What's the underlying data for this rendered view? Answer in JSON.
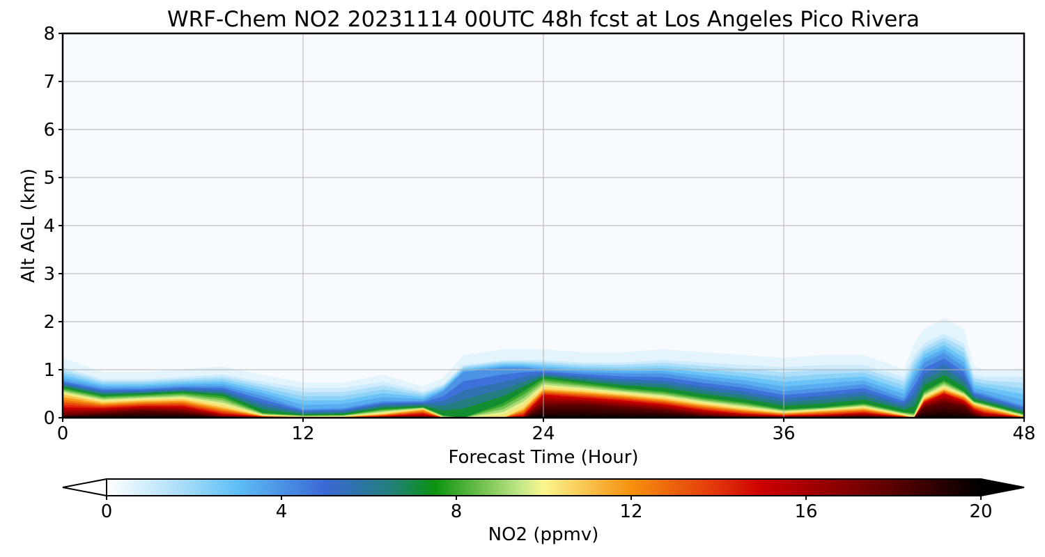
{
  "chart_data": {
    "type": "heatmap",
    "title": "WRF-Chem NO2  20231114 00UTC 48h fcst at Los Angeles Pico Rivera",
    "xlabel": "Forecast Time (Hour)",
    "ylabel": "Alt AGL (km)",
    "xlim": [
      0,
      48
    ],
    "ylim": [
      0,
      8
    ],
    "x_ticks": [
      "0",
      "12",
      "24",
      "36",
      "48"
    ],
    "y_ticks": [
      "0",
      "1",
      "2",
      "3",
      "4",
      "5",
      "6",
      "7",
      "8"
    ],
    "grid": true,
    "times_h": [
      0,
      2,
      4,
      6,
      8,
      10,
      12,
      14,
      16,
      18,
      19,
      20,
      22,
      23,
      24,
      26,
      28,
      30,
      32,
      34,
      36,
      38,
      40,
      42,
      42.5,
      43,
      44,
      45,
      45.5,
      46,
      48
    ],
    "contour_heights_km": [
      {
        "level_ppmv": 1,
        "values": [
          1.05,
          0.8,
          0.8,
          0.85,
          0.9,
          0.75,
          0.62,
          0.62,
          0.75,
          0.55,
          0.7,
          1.1,
          1.2,
          1.2,
          1.2,
          1.15,
          1.15,
          1.2,
          1.15,
          1.1,
          1.05,
          1.1,
          1.1,
          0.85,
          1.3,
          1.55,
          1.75,
          1.55,
          0.9,
          0.85,
          0.85
        ]
      },
      {
        "level_ppmv": 4,
        "values": [
          0.78,
          0.62,
          0.62,
          0.66,
          0.66,
          0.45,
          0.18,
          0.2,
          0.35,
          0.35,
          0.55,
          0.95,
          1.05,
          1.05,
          1.0,
          0.95,
          0.92,
          0.92,
          0.8,
          0.7,
          0.55,
          0.62,
          0.7,
          0.4,
          0.8,
          1.15,
          1.35,
          1.05,
          0.55,
          0.5,
          0.25
        ]
      },
      {
        "level_ppmv": 8,
        "values": [
          0.62,
          0.45,
          0.48,
          0.52,
          0.45,
          0.1,
          0.05,
          0.06,
          0.18,
          0.22,
          0.05,
          0.0,
          0.3,
          0.55,
          0.82,
          0.72,
          0.62,
          0.55,
          0.42,
          0.32,
          0.18,
          0.22,
          0.3,
          0.12,
          0.1,
          0.55,
          0.78,
          0.55,
          0.35,
          0.3,
          0.08
        ]
      },
      {
        "level_ppmv": 11,
        "values": [
          0.48,
          0.32,
          0.36,
          0.38,
          0.22,
          0.04,
          0.02,
          0.02,
          0.08,
          0.18,
          0.0,
          0.0,
          0.0,
          0.2,
          0.6,
          0.55,
          0.48,
          0.4,
          0.28,
          0.18,
          0.1,
          0.15,
          0.2,
          0.05,
          0.0,
          0.4,
          0.6,
          0.45,
          0.28,
          0.22,
          0.02
        ]
      },
      {
        "level_ppmv": 15,
        "values": [
          0.22,
          0.2,
          0.24,
          0.24,
          0.08,
          0.02,
          0.0,
          0.0,
          0.03,
          0.08,
          0.0,
          0.0,
          0.0,
          0.05,
          0.48,
          0.42,
          0.36,
          0.28,
          0.16,
          0.08,
          0.04,
          0.06,
          0.1,
          0.02,
          0.0,
          0.32,
          0.5,
          0.35,
          0.18,
          0.1,
          0.0
        ]
      },
      {
        "level_ppmv": 18,
        "values": [
          0.05,
          0.1,
          0.15,
          0.12,
          0.02,
          0.0,
          0.0,
          0.0,
          0.0,
          0.0,
          0.0,
          0.0,
          0.0,
          0.0,
          0.26,
          0.28,
          0.22,
          0.16,
          0.06,
          0.02,
          0.0,
          0.02,
          0.04,
          0.0,
          0.0,
          0.22,
          0.32,
          0.24,
          0.08,
          0.02,
          0.0
        ]
      }
    ],
    "colorbar": {
      "label": "NO2  (ppmv)",
      "range": [
        0,
        20
      ],
      "extend": "both",
      "ticks": [
        "0",
        "4",
        "8",
        "12",
        "16",
        "20"
      ]
    }
  },
  "colors": {
    "background": "#f7fbff",
    "grid": "#b0b0b0",
    "colormap_stops": [
      [
        0,
        "#ffffff"
      ],
      [
        2,
        "#9ad7f8"
      ],
      [
        3,
        "#5ebef5"
      ],
      [
        5,
        "#3a68d6"
      ],
      [
        6.5,
        "#22807a"
      ],
      [
        7.5,
        "#0b9210"
      ],
      [
        9.5,
        "#c7e88a"
      ],
      [
        10,
        "#fbf58e"
      ],
      [
        12,
        "#f6900e"
      ],
      [
        14,
        "#e2320a"
      ],
      [
        15,
        "#cc0000"
      ],
      [
        18,
        "#5a0000"
      ],
      [
        20,
        "#000000"
      ]
    ]
  }
}
